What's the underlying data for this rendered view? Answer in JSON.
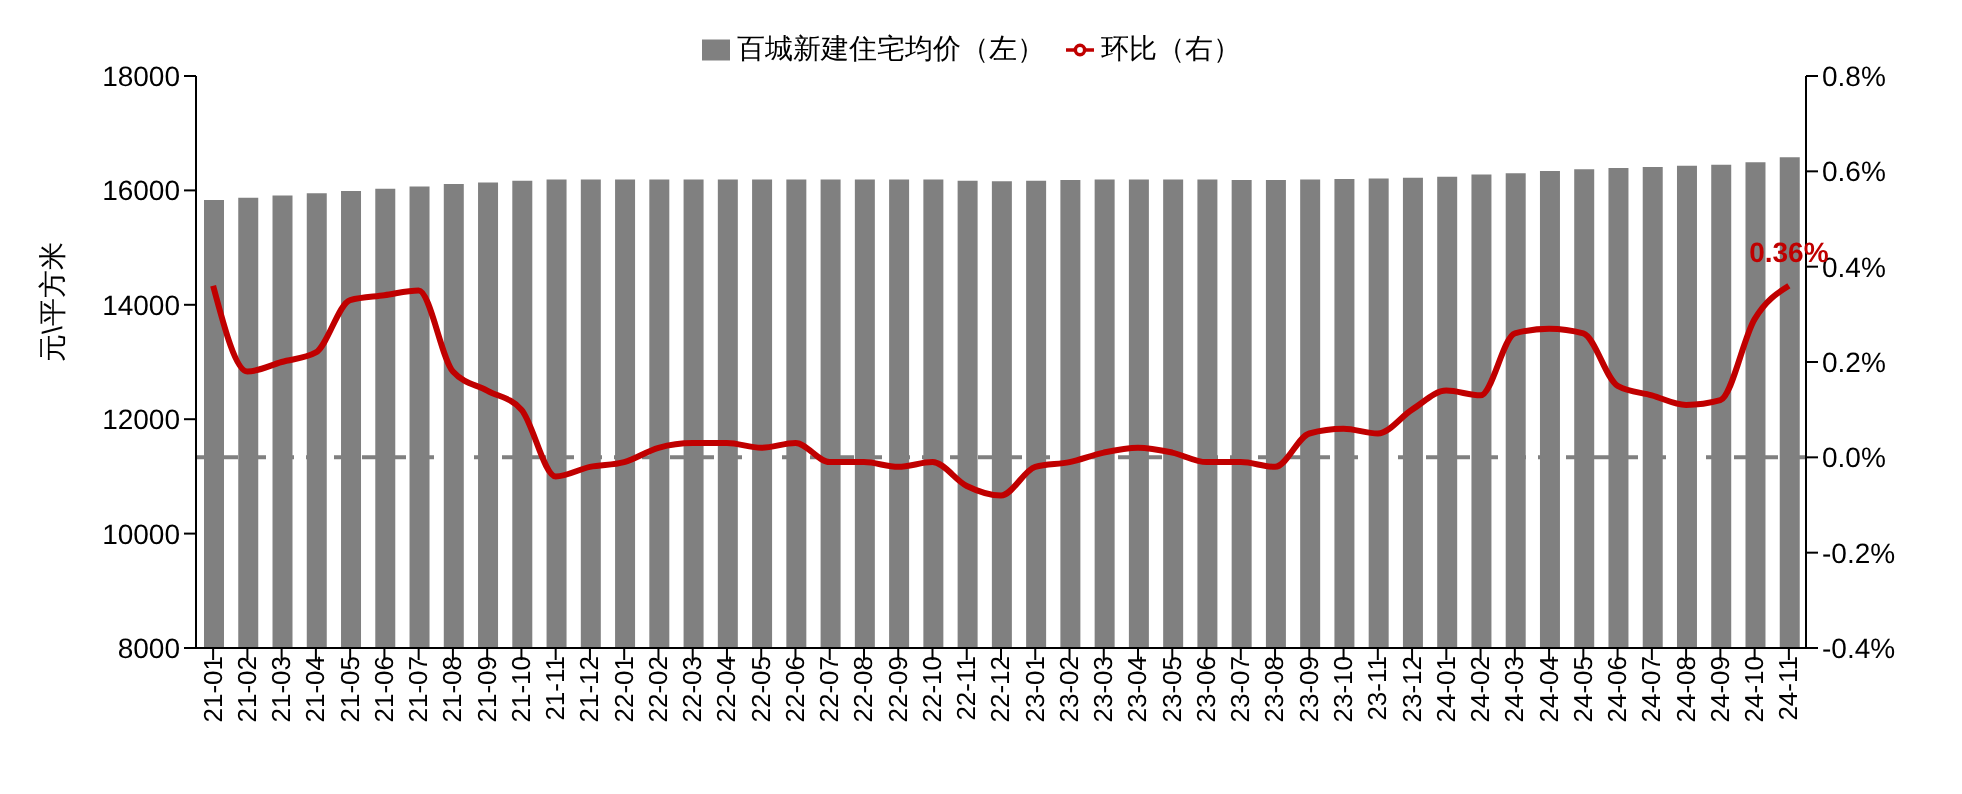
{
  "chart_data": {
    "type": "bar",
    "ylabel": "元\\平方米",
    "categories": [
      "21-01",
      "21-02",
      "21-03",
      "21-04",
      "21-05",
      "21-06",
      "21-07",
      "21-08",
      "21-09",
      "21-10",
      "21-11",
      "21-12",
      "22-01",
      "22-02",
      "22-03",
      "22-04",
      "22-05",
      "22-06",
      "22-07",
      "22-08",
      "22-09",
      "22-10",
      "22-11",
      "22-12",
      "23-01",
      "23-02",
      "23-03",
      "23-04",
      "23-05",
      "23-06",
      "23-07",
      "23-08",
      "23-09",
      "23-10",
      "23-11",
      "23-12",
      "24-01",
      "24-02",
      "24-03",
      "24-04",
      "24-05",
      "24-06",
      "24-07",
      "24-08",
      "24-09",
      "24-10",
      "24-11"
    ],
    "series": [
      {
        "name": "百城新建住宅均价（左）",
        "color": "#808080",
        "values": [
          15830,
          15870,
          15910,
          15950,
          15990,
          16030,
          16070,
          16110,
          16140,
          16170,
          16190,
          16190,
          16190,
          16190,
          16190,
          16190,
          16190,
          16190,
          16190,
          16190,
          16190,
          16190,
          16170,
          16160,
          16170,
          16180,
          16190,
          16190,
          16190,
          16190,
          16180,
          16180,
          16190,
          16200,
          16210,
          16220,
          16240,
          16280,
          16300,
          16340,
          16370,
          16390,
          16410,
          16430,
          16450,
          16490,
          16580
        ]
      },
      {
        "name": "环比（右）",
        "type": "line",
        "axis": "y2",
        "color": "#c00000",
        "values": [
          0.36,
          0.18,
          0.2,
          0.22,
          0.33,
          0.34,
          0.35,
          0.18,
          0.14,
          0.1,
          -0.04,
          -0.02,
          -0.01,
          0.02,
          0.03,
          0.03,
          0.02,
          0.03,
          -0.01,
          -0.01,
          -0.02,
          -0.01,
          -0.06,
          -0.08,
          -0.02,
          -0.01,
          0.01,
          0.02,
          0.01,
          -0.01,
          -0.01,
          -0.02,
          0.05,
          0.06,
          0.05,
          0.1,
          0.14,
          0.13,
          0.26,
          0.27,
          0.26,
          0.15,
          0.13,
          0.11,
          0.12,
          0.29,
          0.36
        ],
        "value_labels": [
          null,
          null,
          null,
          null,
          null,
          null,
          null,
          null,
          null,
          null,
          null,
          null,
          null,
          null,
          null,
          null,
          null,
          null,
          null,
          null,
          null,
          null,
          null,
          null,
          null,
          null,
          null,
          null,
          null,
          null,
          null,
          null,
          null,
          null,
          null,
          null,
          null,
          null,
          null,
          null,
          null,
          null,
          null,
          null,
          null,
          null,
          "0.36%"
        ]
      }
    ],
    "ylim": [
      8000,
      18000
    ],
    "yticks": [
      8000,
      10000,
      12000,
      14000,
      16000,
      18000
    ],
    "y2lim": [
      -0.4,
      0.8
    ],
    "y2ticks": [
      {
        "value": -0.4,
        "label": "-0.4%"
      },
      {
        "value": -0.2,
        "label": "-0.2%"
      },
      {
        "value": 0,
        "label": "0.0%"
      },
      {
        "value": 0.2,
        "label": "0.2%"
      },
      {
        "value": 0.4,
        "label": "0.4%"
      },
      {
        "value": 0.6,
        "label": "0.6%"
      },
      {
        "value": 0.8,
        "label": "0.8%"
      }
    ],
    "ref_lines": [
      {
        "axis": "y2",
        "value": 0,
        "color": "#808080",
        "line_style": "dashed"
      }
    ],
    "grid": false,
    "legend": "top",
    "marker": "none"
  }
}
